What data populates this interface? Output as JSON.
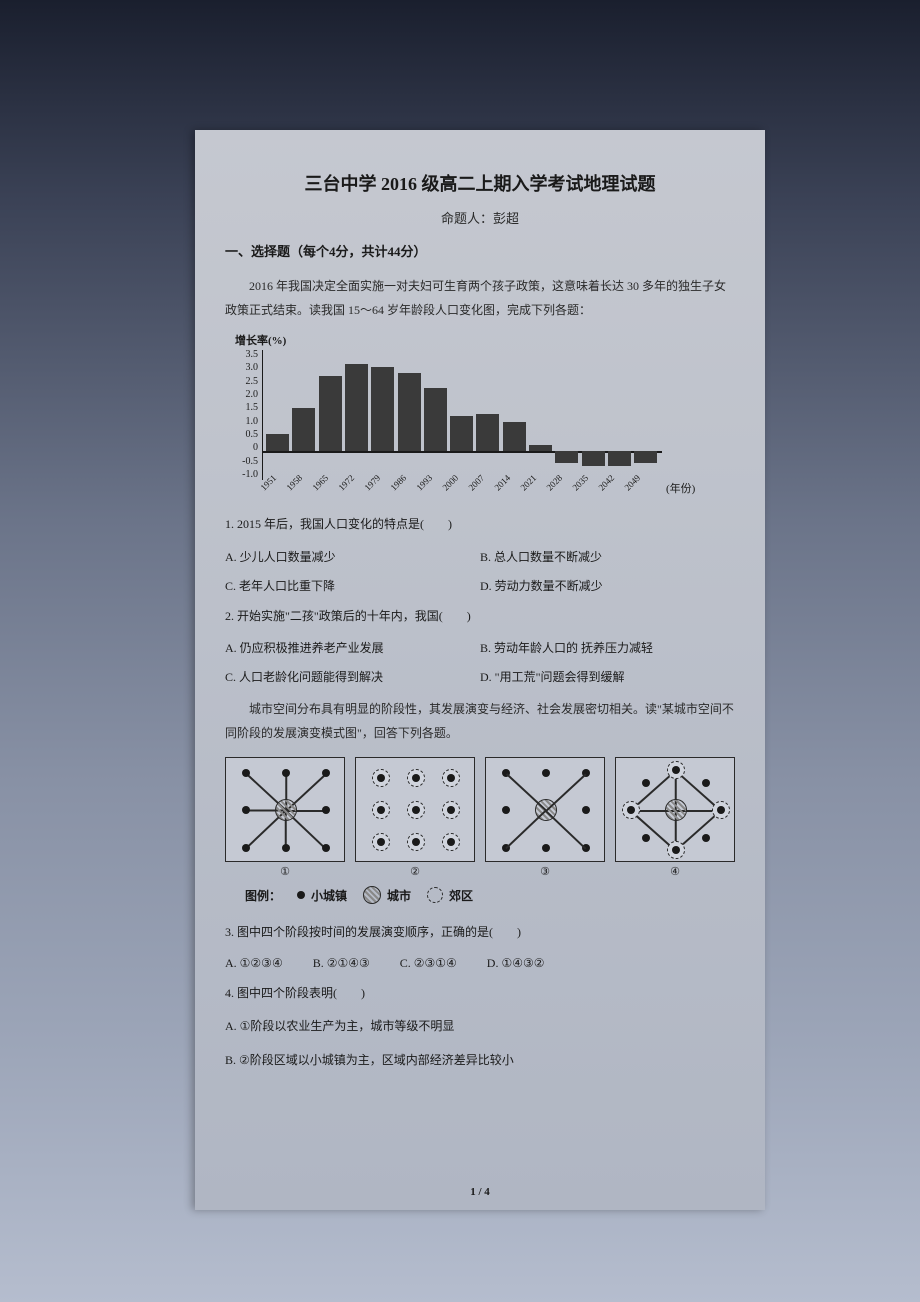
{
  "title": "三台中学 2016 级高二上期入学考试地理试题",
  "author": "命题人：彭超",
  "section_header": "一、选择题（每个4分，共计44分）",
  "context1": "2016 年我国决定全面实施一对夫妇可生育两个孩子政策，这意味着长达 30 多年的独生子女政策正式结束。读我国 15～64 岁年龄段人口变化图，完成下列各题：",
  "chart": {
    "type": "bar",
    "ylabel": "增长率(%)",
    "xlabel": "(年份)",
    "ylim": [
      -1.0,
      3.5
    ],
    "yticks": [
      "3.5",
      "3.0",
      "2.5",
      "2.0",
      "1.5",
      "1.0",
      "0.5",
      "0",
      "-0.5",
      "-1.0"
    ],
    "categories": [
      "1951",
      "1958",
      "1965",
      "1972",
      "1979",
      "1986",
      "1993",
      "2000",
      "2007",
      "2014",
      "2021",
      "2028",
      "2035",
      "2042",
      "2049"
    ],
    "values": [
      0.6,
      1.5,
      2.6,
      3.0,
      2.9,
      2.7,
      2.2,
      1.2,
      1.3,
      1.0,
      0.2,
      -0.4,
      -0.5,
      -0.5,
      -0.4
    ],
    "bar_color": "#3a3a3a",
    "axis_color": "#1a1a1a",
    "background_color": "#c5c9d3"
  },
  "q1": {
    "text": "1. 2015 年后，我国人口变化的特点是(　　)",
    "optA": "A. 少儿人口数量减少",
    "optB": "B. 总人口数量不断减少",
    "optC": "C. 老年人口比重下降",
    "optD": "D. 劳动力数量不断减少"
  },
  "q2": {
    "text": "2. 开始实施\"二孩\"政策后的十年内，我国(　　)",
    "optA": "A. 仍应积极推进养老产业发展",
    "optB": "B. 劳动年龄人口的 抚养压力减轻",
    "optC": "C. 人口老龄化问题能得到解决",
    "optD": "D. \"用工荒\"问题会得到缓解"
  },
  "context2": "城市空间分布具有明显的阶段性，其发展演变与经济、社会发展密切相关。读\"某城市空间不同阶段的发展演变模式图\"，回答下列各题。",
  "diagrams": {
    "labels": [
      "①",
      "②",
      "③",
      "④"
    ]
  },
  "legend": {
    "label": "图例：",
    "town": "小城镇",
    "city": "城市",
    "suburb": "郊区"
  },
  "q3": {
    "text": "3. 图中四个阶段按时间的发展演变顺序，正确的是(　　)",
    "optA": "A. ①②③④",
    "optB": "B. ②①④③",
    "optC": "C. ②③①④",
    "optD": "D. ①④③②"
  },
  "q4": {
    "text": "4. 图中四个阶段表明(　　)",
    "optA": "A. ①阶段以农业生产为主，城市等级不明显",
    "optB": "B. ②阶段区域以小城镇为主，区域内部经济差异比较小"
  },
  "page_num": "1 / 4"
}
